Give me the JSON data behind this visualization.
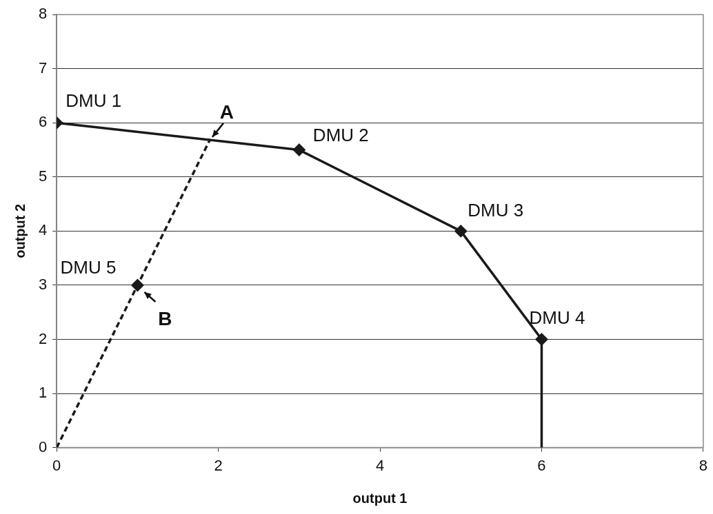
{
  "chart_data": {
    "type": "line",
    "xlabel": "output 1",
    "ylabel": "output 2",
    "xlim": [
      0,
      8
    ],
    "xticks": [
      0,
      2,
      4,
      6,
      8
    ],
    "ylim": [
      0,
      8
    ],
    "yticks": [
      0,
      1,
      2,
      3,
      4,
      5,
      6,
      7,
      8
    ],
    "grid": "y",
    "legend": false,
    "series": [
      {
        "type": "line",
        "color": "#1a1a1a",
        "x": [
          0,
          3,
          5,
          6
        ],
        "values": [
          6,
          5.5,
          4,
          2
        ],
        "marker": "diamond",
        "line_style": "solid"
      },
      {
        "type": "line",
        "color": "#1a1a1a",
        "x": [
          6,
          6
        ],
        "values": [
          2,
          0
        ],
        "marker": "none",
        "line_style": "solid"
      },
      {
        "type": "line",
        "color": "#1a1a1a",
        "x": [
          0,
          1.9
        ],
        "values": [
          0,
          5.7
        ],
        "marker": "none",
        "line_style": "dashed"
      },
      {
        "type": "scatter",
        "color": "#1a1a1a",
        "x": [
          1
        ],
        "values": [
          3
        ],
        "marker": "diamond"
      }
    ],
    "annotations": [
      {
        "text": "DMU 1",
        "x": 0,
        "y": 6
      },
      {
        "text": "DMU 2",
        "x": 3,
        "y": 5.5
      },
      {
        "text": "DMU 3",
        "x": 5,
        "y": 4
      },
      {
        "text": "DMU 4",
        "x": 6,
        "y": 2
      },
      {
        "text": "DMU 5",
        "x": 1,
        "y": 3
      },
      {
        "text": "A",
        "x": 1.9,
        "y": 5.7
      },
      {
        "text": "B",
        "x": 1,
        "y": 3
      }
    ]
  }
}
